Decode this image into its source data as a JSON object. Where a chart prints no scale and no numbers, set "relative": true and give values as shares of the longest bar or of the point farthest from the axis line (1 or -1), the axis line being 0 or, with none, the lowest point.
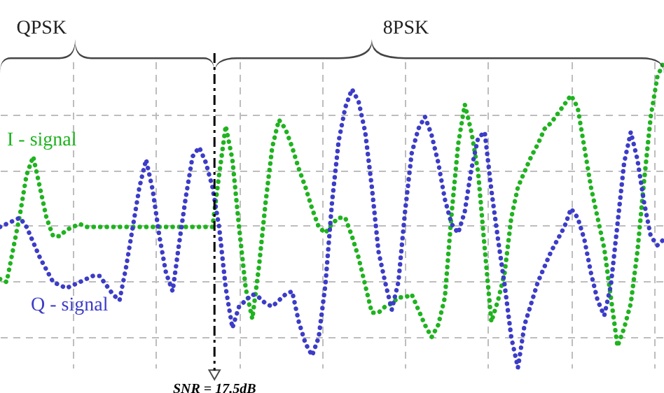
{
  "chart_data": {
    "type": "line",
    "relative": true,
    "grid": true,
    "line_style": "dotted",
    "categories": [
      null,
      null,
      null,
      null,
      null,
      null,
      null,
      null,
      null,
      null,
      null,
      null,
      null,
      null,
      null,
      null,
      null,
      null,
      null,
      null,
      null,
      null,
      null,
      null,
      null,
      null,
      null,
      null,
      null,
      null,
      null,
      null,
      null,
      null,
      null,
      null,
      null,
      null,
      null,
      null,
      null,
      null,
      null,
      null,
      null,
      null,
      null,
      null,
      null,
      null,
      null,
      null,
      null,
      null,
      null,
      null,
      null,
      null,
      null,
      null,
      null,
      null,
      null,
      null,
      null,
      null,
      null,
      null,
      null,
      null,
      null,
      null,
      null,
      null,
      null,
      null,
      null,
      null,
      null,
      null,
      null,
      null,
      null,
      null,
      null,
      null,
      null,
      null,
      null,
      null,
      null,
      null,
      null,
      null,
      null,
      null,
      null,
      null,
      null,
      null,
      null
    ],
    "annotations": [
      "QPSK",
      "8PSK",
      "SNR = 17.5dB"
    ],
    "series": [
      {
        "name": "I - signal",
        "color": "#1fb31f",
        "values": [
          0.29,
          0.28,
          0.39,
          0.5,
          0.63,
          0.69,
          0.59,
          0.49,
          0.43,
          0.43,
          0.45,
          0.46,
          0.47,
          0.46,
          0.46,
          0.46,
          0.46,
          0.46,
          0.46,
          0.46,
          0.46,
          0.46,
          0.46,
          0.46,
          0.46,
          0.46,
          0.46,
          0.46,
          0.46,
          0.46,
          0.46,
          0.46,
          0.46,
          0.63,
          0.79,
          0.68,
          0.46,
          0.26,
          0.16,
          0.33,
          0.54,
          0.72,
          0.81,
          0.78,
          0.72,
          0.65,
          0.59,
          0.52,
          0.46,
          0.44,
          0.47,
          0.49,
          0.49,
          0.43,
          0.36,
          0.27,
          0.18,
          0.18,
          0.2,
          0.21,
          0.23,
          0.23,
          0.24,
          0.19,
          0.14,
          0.1,
          0.14,
          0.23,
          0.5,
          0.73,
          0.86,
          0.77,
          0.64,
          0.39,
          0.15,
          0.22,
          0.31,
          0.49,
          0.59,
          0.64,
          0.69,
          0.73,
          0.78,
          0.8,
          0.83,
          0.86,
          0.89,
          0.85,
          0.72,
          0.59,
          0.49,
          0.39,
          0.23,
          0.07,
          0.13,
          0.21,
          0.38,
          0.61,
          0.82,
          0.95,
          1
        ]
      },
      {
        "name": "Q - signal",
        "color": "#3c3cc8",
        "values": [
          0.46,
          0.47,
          0.48,
          0.49,
          0.46,
          0.41,
          0.36,
          0.32,
          0.28,
          0.27,
          0.26,
          0.27,
          0.28,
          0.29,
          0.3,
          0.3,
          0.27,
          0.24,
          0.22,
          0.33,
          0.46,
          0.59,
          0.68,
          0.58,
          0.43,
          0.31,
          0.25,
          0.41,
          0.56,
          0.69,
          0.72,
          0.67,
          0.59,
          0.46,
          0.26,
          0.13,
          0.2,
          0.22,
          0.24,
          0.23,
          0.21,
          0.2,
          0.22,
          0.24,
          0.25,
          0.15,
          0.08,
          0.04,
          0.1,
          0.27,
          0.54,
          0.74,
          0.85,
          0.91,
          0.87,
          0.77,
          0.59,
          0.38,
          0.28,
          0.19,
          0.28,
          0.51,
          0.7,
          0.78,
          0.82,
          0.76,
          0.67,
          0.55,
          0.47,
          0.44,
          0.51,
          0.65,
          0.75,
          0.77,
          0.58,
          0.42,
          0.27,
          0.1,
          0,
          0.14,
          0.21,
          0.28,
          0.33,
          0.38,
          0.42,
          0.46,
          0.52,
          0.49,
          0.42,
          0.31,
          0.22,
          0.17,
          0.27,
          0.47,
          0.67,
          0.77,
          0.68,
          0.54,
          0.43,
          0.4,
          0.42
        ]
      }
    ]
  }
}
